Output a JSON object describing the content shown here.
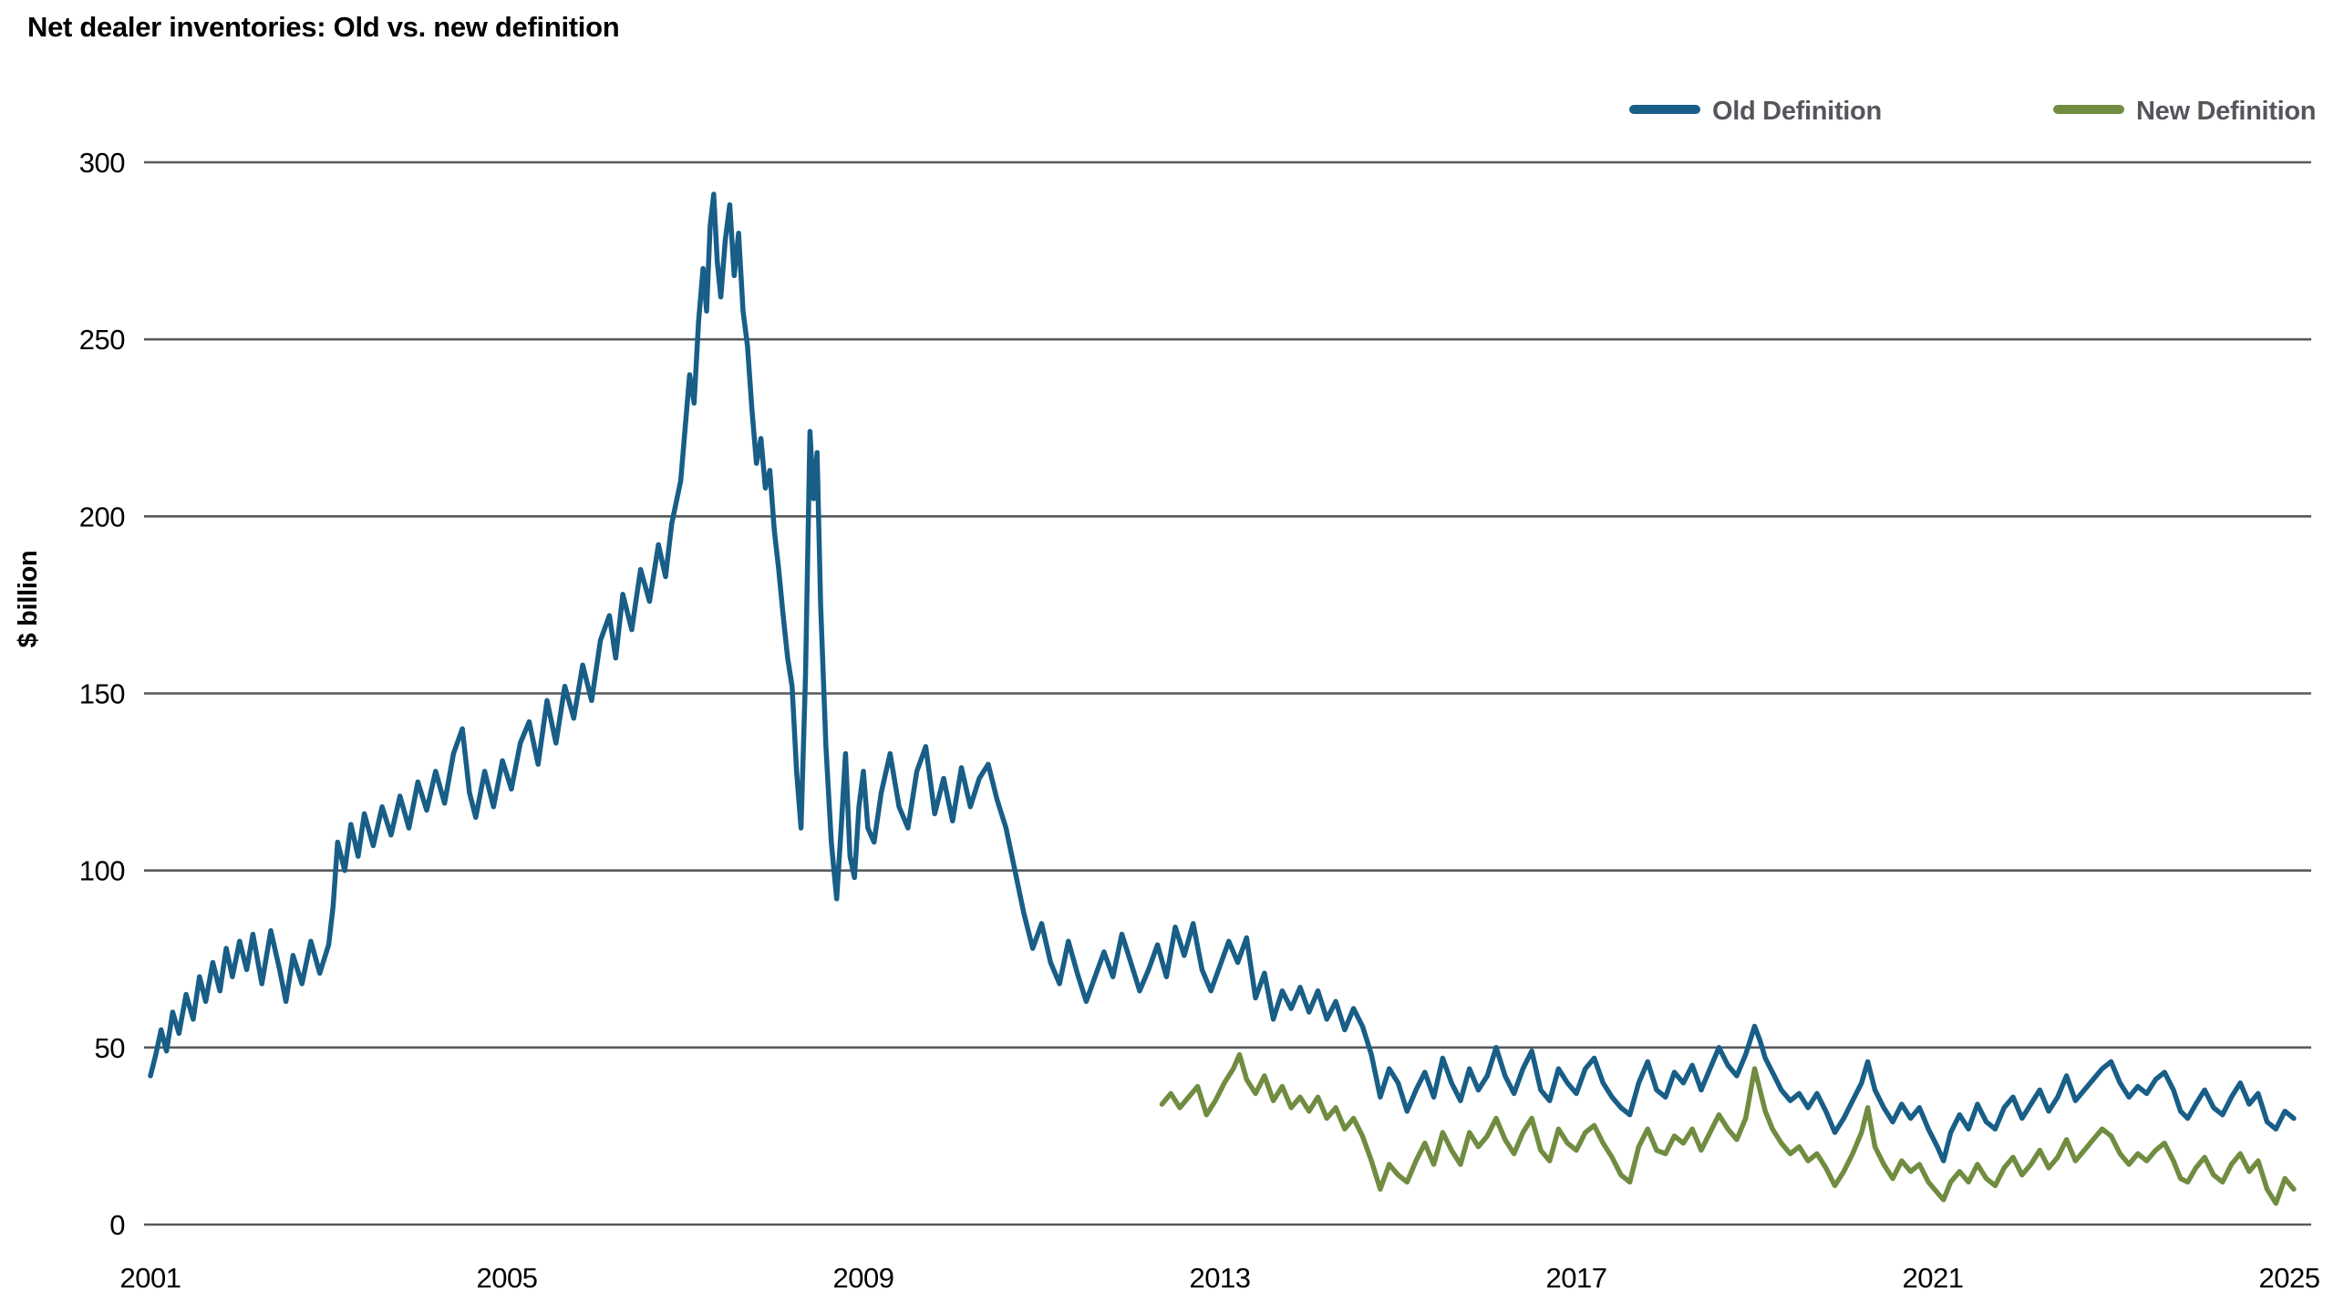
{
  "title": "Net dealer inventories: Old vs. new definition",
  "colors": {
    "background": "#ffffff",
    "gridline": "#58595b",
    "axis_text": "#000000",
    "legend_text": "#55565b",
    "old_definition": "#185e87",
    "new_definition": "#708c40"
  },
  "legend": {
    "position": "top-right",
    "items": [
      {
        "label": "Old Definition",
        "color": "#185e87"
      },
      {
        "label": "New Definition",
        "color": "#708c40"
      }
    ]
  },
  "chart_data": {
    "type": "line",
    "title": "Net dealer inventories: Old vs. new definition",
    "xlabel": "",
    "ylabel": "$ billion",
    "x_ticks": [
      2001,
      2005,
      2009,
      2013,
      2017,
      2021,
      2025
    ],
    "y_ticks": [
      0,
      50,
      100,
      150,
      200,
      250,
      300
    ],
    "xlim": [
      2001,
      2025.3
    ],
    "ylim": [
      0,
      300
    ],
    "grid": "horizontal",
    "legend_position": "top-right",
    "series": [
      {
        "name": "Old Definition",
        "color": "#185e87",
        "x": [
          2001.0,
          2001.06,
          2001.12,
          2001.18,
          2001.25,
          2001.32,
          2001.4,
          2001.48,
          2001.55,
          2001.62,
          2001.7,
          2001.78,
          2001.85,
          2001.92,
          2002.0,
          2002.08,
          2002.15,
          2002.25,
          2002.35,
          2002.45,
          2002.52,
          2002.6,
          2002.7,
          2002.8,
          2002.9,
          2003.0,
          2003.05,
          2003.1,
          2003.18,
          2003.25,
          2003.33,
          2003.4,
          2003.5,
          2003.6,
          2003.7,
          2003.8,
          2003.9,
          2004.0,
          2004.1,
          2004.2,
          2004.3,
          2004.4,
          2004.5,
          2004.58,
          2004.65,
          2004.75,
          2004.85,
          2004.95,
          2005.05,
          2005.15,
          2005.25,
          2005.35,
          2005.45,
          2005.55,
          2005.65,
          2005.75,
          2005.85,
          2005.95,
          2006.05,
          2006.15,
          2006.22,
          2006.3,
          2006.4,
          2006.5,
          2006.6,
          2006.7,
          2006.78,
          2006.85,
          2006.95,
          2007.0,
          2007.05,
          2007.1,
          2007.15,
          2007.2,
          2007.24,
          2007.28,
          2007.32,
          2007.36,
          2007.4,
          2007.45,
          2007.5,
          2007.55,
          2007.6,
          2007.65,
          2007.7,
          2007.75,
          2007.8,
          2007.85,
          2007.9,
          2007.95,
          2008.0,
          2008.05,
          2008.1,
          2008.15,
          2008.2,
          2008.25,
          2008.3,
          2008.35,
          2008.4,
          2008.44,
          2008.48,
          2008.52,
          2008.58,
          2008.64,
          2008.7,
          2008.75,
          2008.8,
          2008.85,
          2008.9,
          2008.95,
          2009.0,
          2009.05,
          2009.12,
          2009.2,
          2009.3,
          2009.4,
          2009.5,
          2009.6,
          2009.7,
          2009.8,
          2009.9,
          2010.0,
          2010.1,
          2010.2,
          2010.3,
          2010.4,
          2010.5,
          2010.6,
          2010.7,
          2010.8,
          2010.9,
          2011.0,
          2011.1,
          2011.2,
          2011.3,
          2011.4,
          2011.5,
          2011.6,
          2011.7,
          2011.8,
          2011.9,
          2012.0,
          2012.1,
          2012.2,
          2012.3,
          2012.4,
          2012.5,
          2012.6,
          2012.7,
          2012.8,
          2012.9,
          2013.0,
          2013.1,
          2013.2,
          2013.3,
          2013.4,
          2013.5,
          2013.6,
          2013.7,
          2013.8,
          2013.9,
          2014.0,
          2014.1,
          2014.2,
          2014.3,
          2014.4,
          2014.5,
          2014.6,
          2014.7,
          2014.8,
          2014.9,
          2015.0,
          2015.1,
          2015.2,
          2015.3,
          2015.4,
          2015.5,
          2015.6,
          2015.7,
          2015.8,
          2015.9,
          2016.0,
          2016.1,
          2016.2,
          2016.3,
          2016.4,
          2016.5,
          2016.6,
          2016.7,
          2016.8,
          2016.9,
          2017.0,
          2017.1,
          2017.2,
          2017.3,
          2017.4,
          2017.5,
          2017.6,
          2017.7,
          2017.8,
          2017.9,
          2018.0,
          2018.1,
          2018.2,
          2018.3,
          2018.4,
          2018.5,
          2018.6,
          2018.7,
          2018.8,
          2018.9,
          2019.0,
          2019.06,
          2019.12,
          2019.2,
          2019.3,
          2019.4,
          2019.5,
          2019.6,
          2019.7,
          2019.8,
          2019.9,
          2020.0,
          2020.1,
          2020.2,
          2020.27,
          2020.35,
          2020.45,
          2020.55,
          2020.65,
          2020.75,
          2020.85,
          2020.95,
          2021.05,
          2021.12,
          2021.2,
          2021.3,
          2021.4,
          2021.5,
          2021.6,
          2021.7,
          2021.8,
          2021.9,
          2022.0,
          2022.1,
          2022.2,
          2022.3,
          2022.4,
          2022.5,
          2022.6,
          2022.7,
          2022.8,
          2022.9,
          2023.0,
          2023.1,
          2023.2,
          2023.3,
          2023.4,
          2023.5,
          2023.6,
          2023.7,
          2023.78,
          2023.86,
          2023.95,
          2024.05,
          2024.15,
          2024.25,
          2024.35,
          2024.45,
          2024.55,
          2024.65,
          2024.75,
          2024.85,
          2024.95,
          2025.05
        ],
        "y": [
          42,
          48,
          55,
          49,
          60,
          54,
          65,
          58,
          70,
          63,
          74,
          66,
          78,
          70,
          80,
          72,
          82,
          68,
          83,
          72,
          63,
          76,
          68,
          80,
          71,
          79,
          90,
          108,
          100,
          113,
          104,
          116,
          107,
          118,
          110,
          121,
          112,
          125,
          117,
          128,
          119,
          133,
          140,
          122,
          115,
          128,
          118,
          131,
          123,
          136,
          142,
          130,
          148,
          136,
          152,
          143,
          158,
          148,
          165,
          172,
          160,
          178,
          168,
          185,
          176,
          192,
          183,
          198,
          210,
          225,
          240,
          232,
          255,
          270,
          258,
          282,
          291,
          272,
          262,
          278,
          288,
          268,
          280,
          258,
          248,
          230,
          215,
          222,
          208,
          213,
          196,
          185,
          172,
          160,
          152,
          128,
          112,
          155,
          224,
          205,
          218,
          175,
          135,
          108,
          92,
          112,
          133,
          104,
          98,
          118,
          128,
          112,
          108,
          122,
          133,
          118,
          112,
          128,
          135,
          116,
          126,
          114,
          129,
          118,
          126,
          130,
          120,
          112,
          100,
          88,
          78,
          85,
          74,
          68,
          80,
          71,
          63,
          70,
          77,
          70,
          82,
          74,
          66,
          72,
          79,
          70,
          84,
          76,
          85,
          72,
          66,
          73,
          80,
          74,
          81,
          64,
          71,
          58,
          66,
          61,
          67,
          60,
          66,
          58,
          63,
          55,
          61,
          56,
          48,
          36,
          44,
          40,
          32,
          38,
          43,
          36,
          47,
          40,
          35,
          44,
          38,
          42,
          50,
          42,
          37,
          44,
          49,
          38,
          35,
          44,
          40,
          37,
          44,
          47,
          40,
          36,
          33,
          31,
          40,
          46,
          38,
          36,
          43,
          40,
          45,
          38,
          44,
          50,
          45,
          42,
          48,
          56,
          52,
          47,
          43,
          38,
          35,
          37,
          33,
          37,
          32,
          26,
          30,
          35,
          40,
          46,
          38,
          33,
          29,
          34,
          30,
          33,
          27,
          22,
          18,
          26,
          31,
          27,
          34,
          29,
          27,
          33,
          36,
          30,
          34,
          38,
          32,
          36,
          42,
          35,
          38,
          41,
          44,
          46,
          40,
          36,
          39,
          37,
          41,
          43,
          38,
          32,
          30,
          34,
          38,
          33,
          31,
          36,
          40,
          34,
          37,
          29,
          27,
          32,
          30
        ]
      },
      {
        "name": "New Definition",
        "color": "#708c40",
        "x": [
          2012.35,
          2012.45,
          2012.55,
          2012.65,
          2012.75,
          2012.85,
          2012.95,
          2013.05,
          2013.15,
          2013.22,
          2013.3,
          2013.4,
          2013.5,
          2013.6,
          2013.7,
          2013.8,
          2013.9,
          2014.0,
          2014.1,
          2014.2,
          2014.3,
          2014.4,
          2014.5,
          2014.6,
          2014.7,
          2014.8,
          2014.9,
          2015.0,
          2015.1,
          2015.2,
          2015.3,
          2015.4,
          2015.5,
          2015.6,
          2015.7,
          2015.8,
          2015.9,
          2016.0,
          2016.1,
          2016.2,
          2016.3,
          2016.4,
          2016.5,
          2016.6,
          2016.7,
          2016.8,
          2016.9,
          2017.0,
          2017.1,
          2017.2,
          2017.3,
          2017.4,
          2017.5,
          2017.6,
          2017.7,
          2017.8,
          2017.9,
          2018.0,
          2018.1,
          2018.2,
          2018.3,
          2018.4,
          2018.5,
          2018.6,
          2018.7,
          2018.8,
          2018.9,
          2019.0,
          2019.06,
          2019.12,
          2019.2,
          2019.3,
          2019.4,
          2019.5,
          2019.6,
          2019.7,
          2019.8,
          2019.9,
          2020.0,
          2020.1,
          2020.2,
          2020.27,
          2020.35,
          2020.45,
          2020.55,
          2020.65,
          2020.75,
          2020.85,
          2020.95,
          2021.05,
          2021.12,
          2021.2,
          2021.3,
          2021.4,
          2021.5,
          2021.6,
          2021.7,
          2021.8,
          2021.9,
          2022.0,
          2022.1,
          2022.2,
          2022.3,
          2022.4,
          2022.5,
          2022.6,
          2022.7,
          2022.8,
          2022.9,
          2023.0,
          2023.1,
          2023.2,
          2023.3,
          2023.4,
          2023.5,
          2023.6,
          2023.7,
          2023.78,
          2023.86,
          2023.95,
          2024.05,
          2024.15,
          2024.25,
          2024.35,
          2024.45,
          2024.55,
          2024.65,
          2024.75,
          2024.85,
          2024.95,
          2025.05
        ],
        "y": [
          34,
          37,
          33,
          36,
          39,
          31,
          35,
          40,
          44,
          48,
          41,
          37,
          42,
          35,
          39,
          33,
          36,
          32,
          36,
          30,
          33,
          27,
          30,
          25,
          18,
          10,
          17,
          14,
          12,
          18,
          23,
          17,
          26,
          21,
          17,
          26,
          22,
          25,
          30,
          24,
          20,
          26,
          30,
          21,
          18,
          27,
          23,
          21,
          26,
          28,
          23,
          19,
          14,
          12,
          22,
          27,
          21,
          20,
          25,
          23,
          27,
          21,
          26,
          31,
          27,
          24,
          30,
          44,
          38,
          32,
          27,
          23,
          20,
          22,
          18,
          20,
          16,
          11,
          15,
          20,
          26,
          33,
          22,
          17,
          13,
          18,
          15,
          17,
          12,
          9,
          7,
          12,
          15,
          12,
          17,
          13,
          11,
          16,
          19,
          14,
          17,
          21,
          16,
          19,
          24,
          18,
          21,
          24,
          27,
          25,
          20,
          17,
          20,
          18,
          21,
          23,
          18,
          13,
          12,
          16,
          19,
          14,
          12,
          17,
          20,
          15,
          18,
          10,
          6,
          13,
          10
        ]
      }
    ]
  }
}
